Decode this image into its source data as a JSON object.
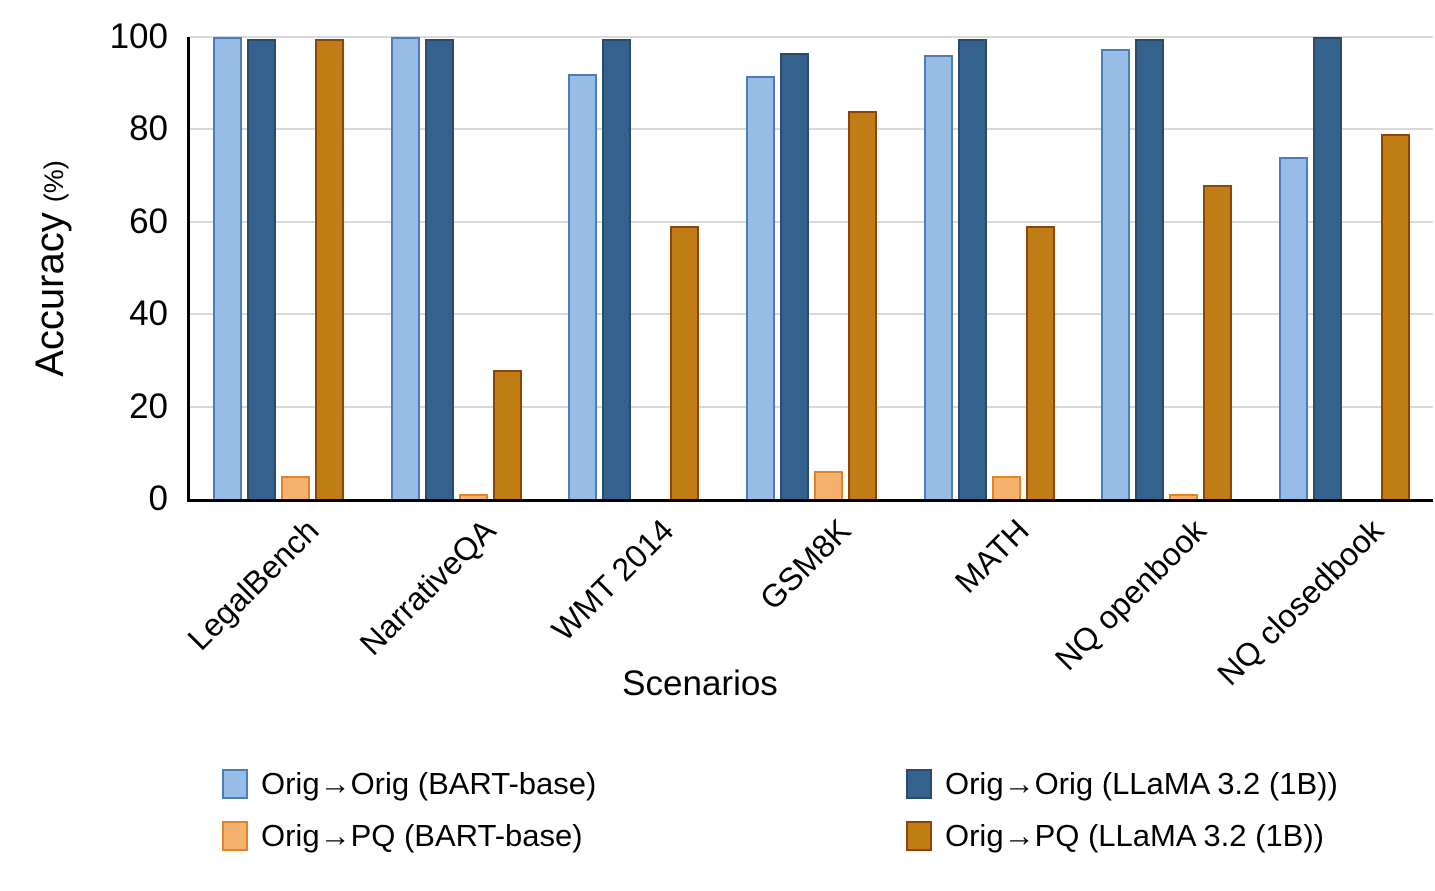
{
  "chart_data": {
    "type": "bar",
    "xlabel": "Scenarios",
    "ylabel": "Accuracy",
    "ylabel_unit": "(%)",
    "ylim": [
      0,
      100
    ],
    "yticks": [
      0,
      20,
      40,
      60,
      80,
      100
    ],
    "grid": "horizontal-only",
    "gridline_color": "#d9d9d9",
    "legend_position": "bottom",
    "categories": [
      "LegalBench",
      "NarrativeQA",
      "WMT 2014",
      "GSM8K",
      "MATH",
      "NQ openbook",
      "NQ closedbook"
    ],
    "series": [
      {
        "name": "Orig→Orig (BART-base)",
        "fill": "#97bce5",
        "border": "#4c7cbf",
        "values": [
          100,
          100,
          92,
          91.5,
          96,
          97.5,
          74
        ]
      },
      {
        "name": "Orig→Orig (LLaMA 3.2 (1B))",
        "fill": "#35618f",
        "border": "#2a4a6b",
        "values": [
          99.5,
          99.5,
          99.5,
          96.5,
          99.5,
          99.5,
          100
        ]
      },
      {
        "name": "Orig→PQ (BART-base)",
        "fill": "#f5b26e",
        "border": "#e08425",
        "values": [
          5,
          1,
          0,
          6,
          5,
          1,
          0
        ]
      },
      {
        "name": "Orig→PQ (LLaMA 3.2 (1B))",
        "fill": "#c07c15",
        "border": "#8f4408",
        "values": [
          99.5,
          28,
          59,
          84,
          59,
          68,
          79
        ]
      }
    ]
  }
}
